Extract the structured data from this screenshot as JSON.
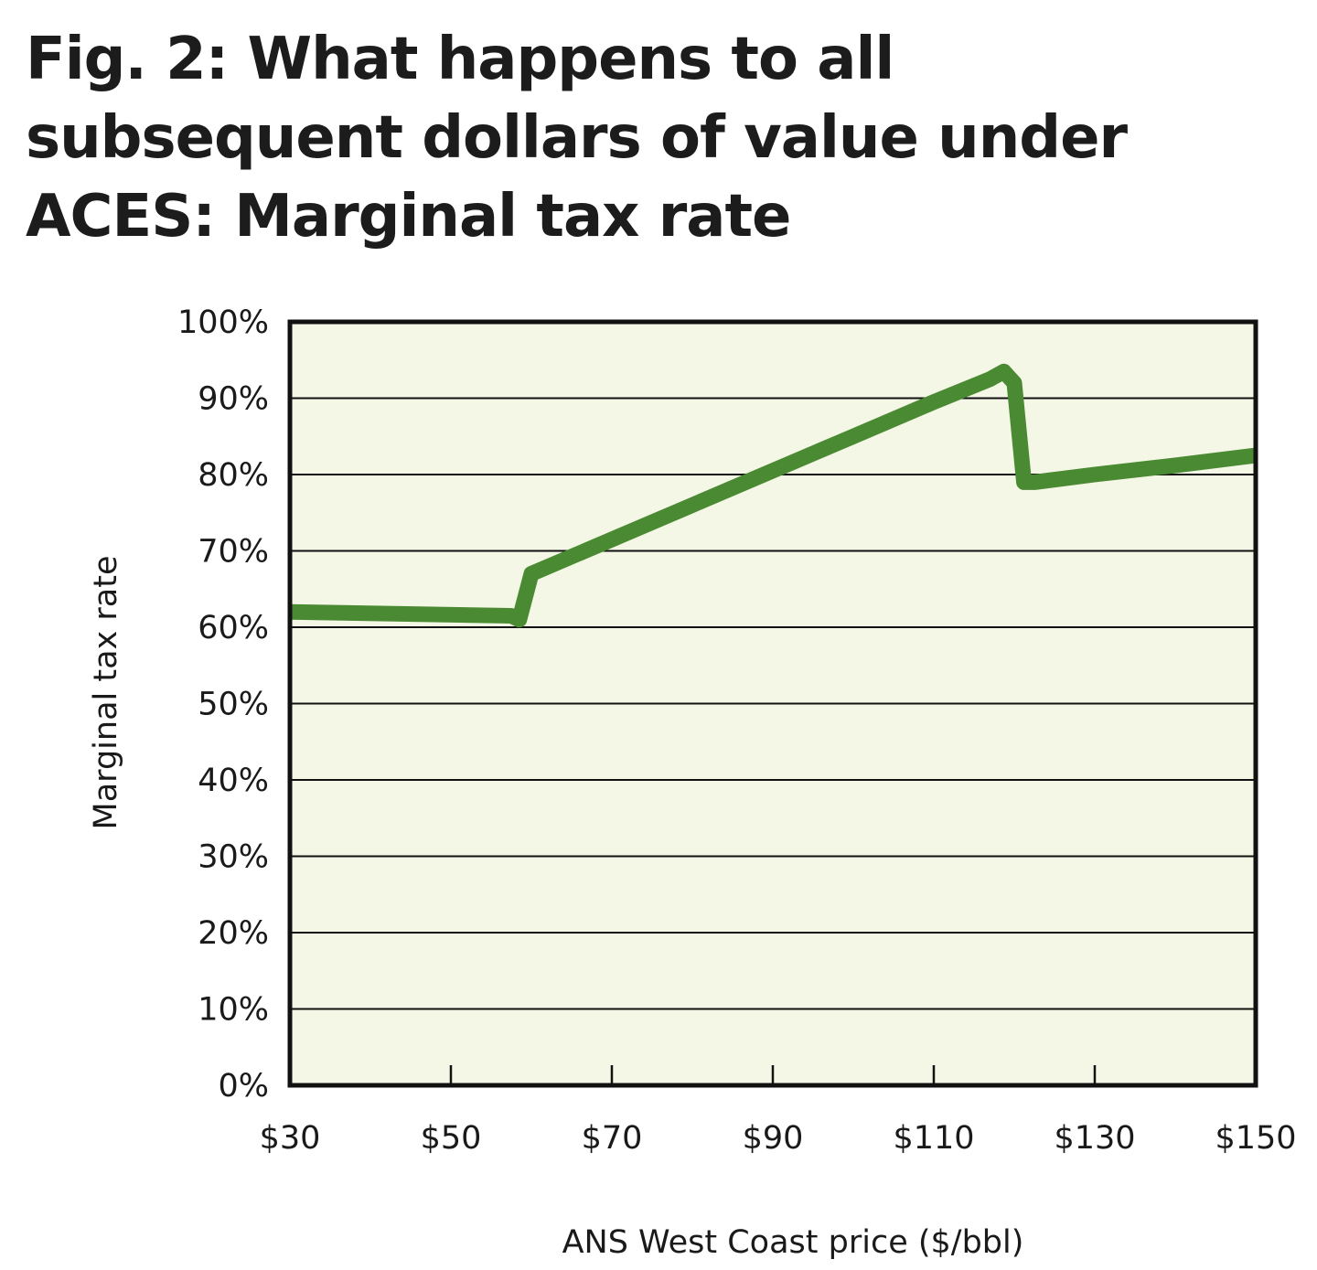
{
  "chart_data": {
    "type": "line",
    "title": "Fig. 2: What happens to all subsequent dollars of value under ACES: Marginal tax rate",
    "xlabel": "ANS West Coast price ($/bbl)",
    "ylabel": "Marginal tax rate",
    "xlim": [
      30,
      150
    ],
    "ylim": [
      0,
      100
    ],
    "x_ticks": [
      30,
      50,
      70,
      90,
      110,
      130,
      150
    ],
    "x_tick_labels": [
      "$30",
      "$50",
      "$70",
      "$90",
      "$110",
      "$130",
      "$150"
    ],
    "y_ticks": [
      0,
      10,
      20,
      30,
      40,
      50,
      60,
      70,
      80,
      90,
      100
    ],
    "y_tick_labels": [
      "0%",
      "10%",
      "20%",
      "30%",
      "40%",
      "50%",
      "60%",
      "70%",
      "80%",
      "90%",
      "100%"
    ],
    "grid": true,
    "legend": "none",
    "series": [
      {
        "x": [
          30,
          57.5,
          58.5,
          60,
          70,
          80,
          90,
          100,
          110,
          117,
          118.7,
          120,
          121.2,
          122.5,
          130,
          140,
          150
        ],
        "y": [
          62,
          61.5,
          61,
          67,
          71.5,
          76,
          80.5,
          85,
          89.5,
          92.5,
          93.5,
          92,
          79,
          79,
          80,
          81.2,
          82.5
        ]
      }
    ],
    "colors": {
      "line": "#4a8a32",
      "plot_background": "#f4f7e6",
      "grid": "#111111",
      "frame": "#111111"
    }
  }
}
